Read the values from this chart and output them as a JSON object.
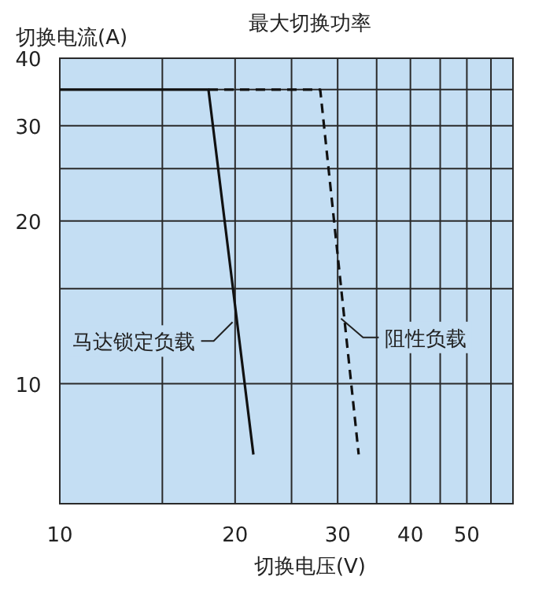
{
  "chart_data": {
    "type": "line",
    "title": "最大切换功率",
    "xlabel": "切换电压(V)",
    "ylabel": "切换电流(A)",
    "log": "xy",
    "grid": true,
    "xlim": [
      10,
      60
    ],
    "xticks": [
      10,
      {
        "value": 15,
        "label": null
      },
      20,
      {
        "value": 25,
        "label": null
      },
      30,
      {
        "value": 35,
        "label": null
      },
      40,
      {
        "value": 45,
        "label": null
      },
      50,
      {
        "value": 55,
        "label": null
      }
    ],
    "ylim": [
      6,
      40
    ],
    "yticks": [
      10,
      {
        "value": 15,
        "label": null
      },
      20,
      {
        "value": 25,
        "label": null
      },
      30,
      {
        "value": 35,
        "label": null
      },
      40
    ],
    "series": [
      {
        "color": "#111111",
        "line_style": "solid",
        "x": [
          10,
          18,
          21.5
        ],
        "values": [
          35,
          35,
          7.4
        ]
      },
      {
        "color": "#111111",
        "line_style": "dashed",
        "x": [
          18,
          28,
          32.6
        ],
        "values": [
          35,
          35,
          7.4
        ]
      }
    ],
    "annotations": [
      {
        "text": "马达锁定负载",
        "x": 19.8,
        "y": 13
      },
      {
        "text": "阻性负载",
        "x": 30.4,
        "y": 13.2
      }
    ]
  }
}
